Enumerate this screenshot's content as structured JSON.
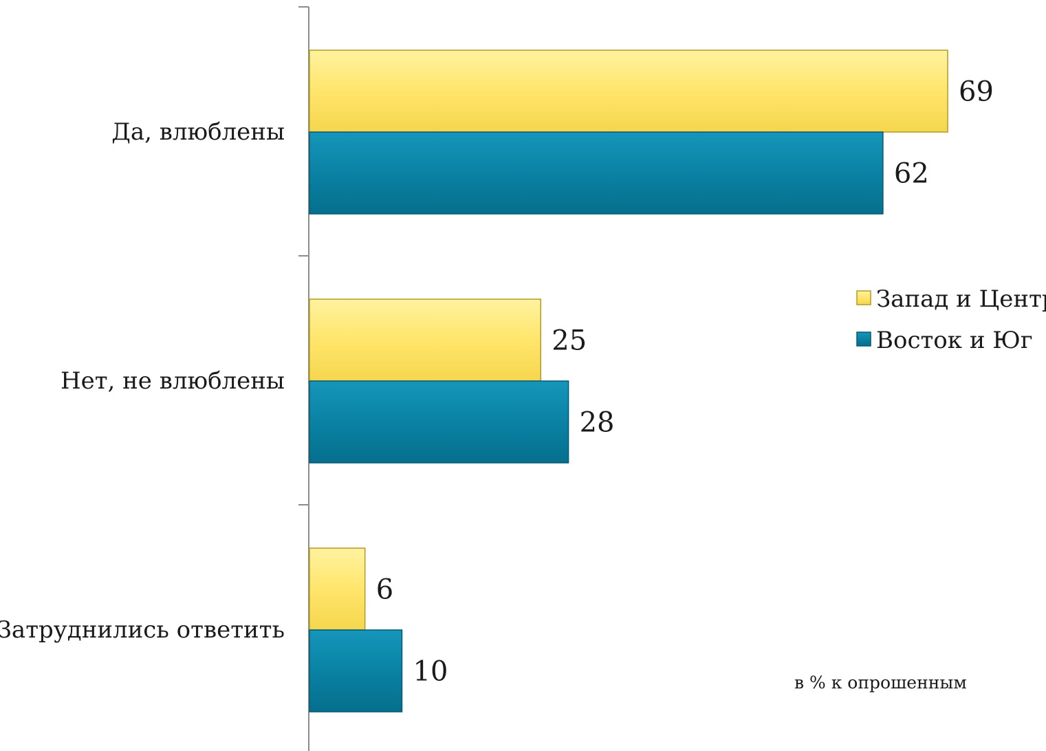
{
  "chart_data": {
    "type": "bar",
    "orientation": "horizontal",
    "categories": [
      "Да, влюблены",
      "Нет, не влюблены",
      "Затруднились ответить"
    ],
    "series": [
      {
        "name": "Запад и Центр",
        "values": [
          69,
          25,
          6
        ],
        "color": "#ffe56b"
      },
      {
        "name": "Восток и Юг",
        "values": [
          62,
          28,
          10
        ],
        "color": "#0a82a4"
      }
    ],
    "xlim": [
      0,
      80
    ],
    "legend_position": "right",
    "grid": false,
    "note": "в % к опрошенным"
  }
}
